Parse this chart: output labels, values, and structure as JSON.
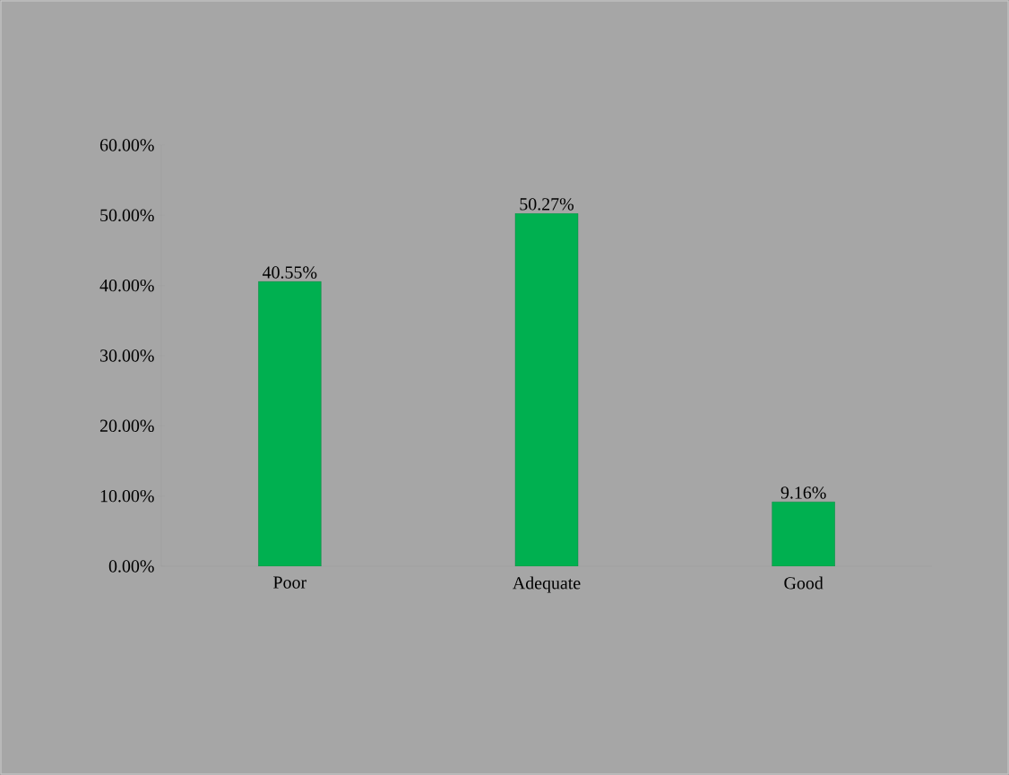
{
  "chart_data": {
    "type": "bar",
    "categories": [
      "Poor",
      "Adequate",
      "Good"
    ],
    "values": [
      40.55,
      50.27,
      9.16
    ],
    "value_labels": [
      "40.55%",
      "50.27%",
      "9.16%"
    ],
    "color": "#00b050",
    "ylim": [
      0,
      60
    ],
    "yticks": [
      {
        "value": 0,
        "label": "0.00%"
      },
      {
        "value": 10,
        "label": "10.00%"
      },
      {
        "value": 20,
        "label": "20.00%"
      },
      {
        "value": 30,
        "label": "30.00%"
      },
      {
        "value": 40,
        "label": "40.00%"
      },
      {
        "value": 50,
        "label": "50.00%"
      },
      {
        "value": 60,
        "label": "60.00%"
      }
    ]
  }
}
